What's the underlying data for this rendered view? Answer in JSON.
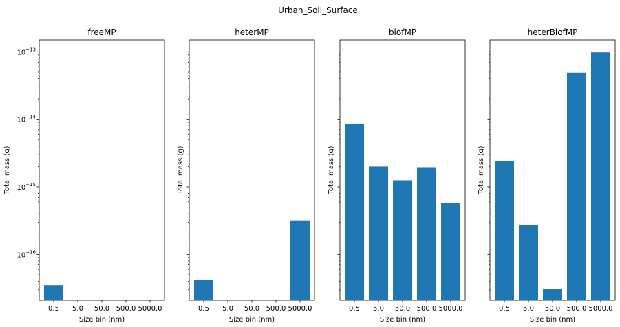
{
  "figure_title": "Urban_Soil_Surface",
  "colors": {
    "bar": "#1f77b4",
    "axis": "#000000",
    "background": "#ffffff"
  },
  "chart_data": [
    {
      "type": "bar",
      "yscale": "log",
      "title": "freeMP",
      "xlabel": "Size bin (nm)",
      "ylabel": "Total mass (g)",
      "categories": [
        "0.5",
        "5.0",
        "50.0",
        "500.0",
        "5000.0"
      ],
      "values": [
        3.5e-17,
        null,
        null,
        null,
        null
      ],
      "ylim": [
        2.1e-17,
        1.5e-13
      ],
      "ytick_labels_visible": true,
      "grid": false
    },
    {
      "type": "bar",
      "yscale": "log",
      "title": "heterMP",
      "xlabel": "Size bin (nm)",
      "ylabel": "Total mass (g)",
      "categories": [
        "0.5",
        "5.0",
        "50.0",
        "500.0",
        "5000.0"
      ],
      "values": [
        4.2e-17,
        null,
        null,
        null,
        3.2e-16
      ],
      "ylim": [
        2.1e-17,
        1.5e-13
      ],
      "ytick_labels_visible": false,
      "grid": false
    },
    {
      "type": "bar",
      "yscale": "log",
      "title": "biofMP",
      "xlabel": "Size bin (nm)",
      "ylabel": "Total mass (g)",
      "categories": [
        "0.5",
        "5.0",
        "50.0",
        "500.0",
        "5000.0"
      ],
      "values": [
        8.5e-15,
        2e-15,
        1.25e-15,
        1.95e-15,
        5.7e-16
      ],
      "ylim": [
        2.1e-17,
        1.5e-13
      ],
      "ytick_labels_visible": false,
      "grid": false
    },
    {
      "type": "bar",
      "yscale": "log",
      "title": "heterBiofMP",
      "xlabel": "Size bin (nm)",
      "ylabel": "Total mass (g)",
      "categories": [
        "0.5",
        "5.0",
        "50.0",
        "500.0",
        "5000.0"
      ],
      "values": [
        2.4e-15,
        2.7e-16,
        3.1e-17,
        4.9e-14,
        9.8e-14
      ],
      "ylim": [
        2.1e-17,
        1.5e-13
      ],
      "ytick_labels_visible": false,
      "grid": false
    }
  ],
  "ytick_labels": [
    {
      "value": 1e-16,
      "base": "10",
      "exp": "−16"
    },
    {
      "value": 1e-15,
      "base": "10",
      "exp": "−15"
    },
    {
      "value": 1e-14,
      "base": "10",
      "exp": "−14"
    },
    {
      "value": 1e-13,
      "base": "10",
      "exp": "−13"
    }
  ]
}
